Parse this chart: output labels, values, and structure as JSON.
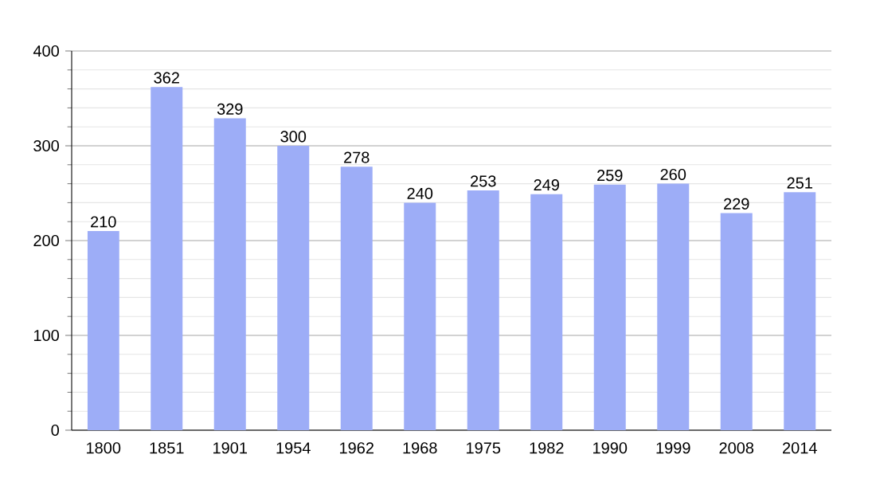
{
  "chart_data": {
    "type": "bar",
    "categories": [
      "1800",
      "1851",
      "1901",
      "1954",
      "1962",
      "1968",
      "1975",
      "1982",
      "1990",
      "1999",
      "2008",
      "2014"
    ],
    "values": [
      210,
      362,
      329,
      300,
      278,
      240,
      253,
      249,
      259,
      260,
      229,
      251
    ],
    "color": "#9dadf7",
    "ylim": [
      0,
      400
    ],
    "yticks": [
      0,
      100,
      200,
      300,
      400
    ],
    "grid": "y",
    "data_labels": true
  }
}
